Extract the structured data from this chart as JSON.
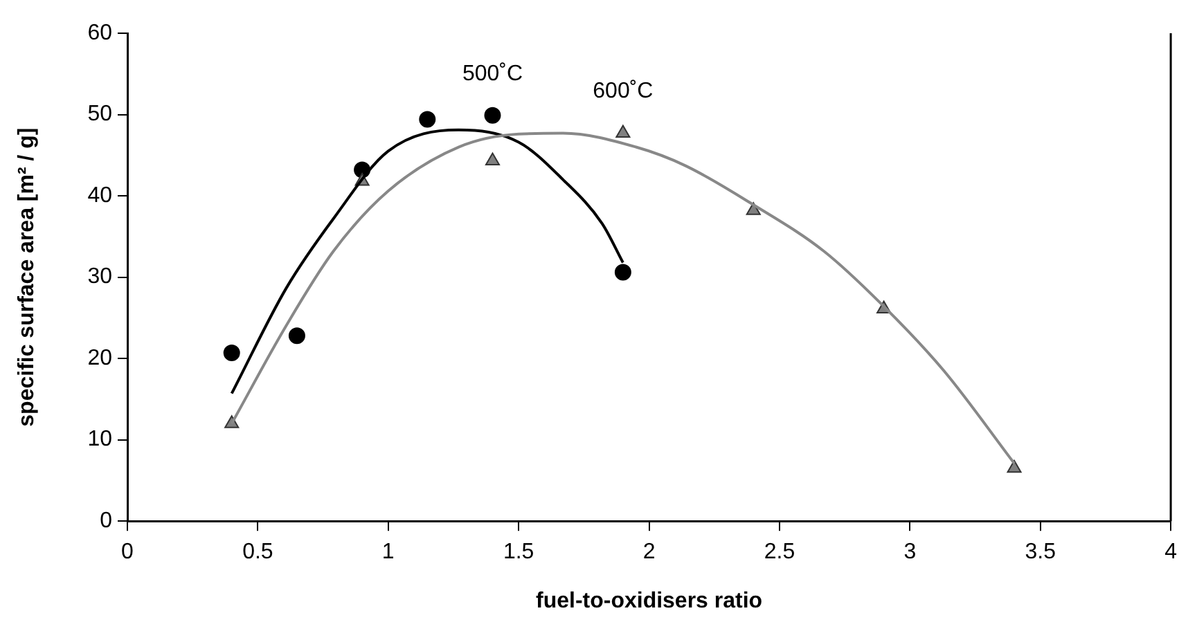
{
  "chart_data": {
    "type": "scatter",
    "xlabel": "fuel-to-oxidisers ratio",
    "ylabel": "specific surface area [m² / g]",
    "xlim": [
      0,
      4
    ],
    "xticks": [
      0,
      0.5,
      1,
      1.5,
      2,
      2.5,
      3,
      3.5,
      4
    ],
    "ylim": [
      0,
      60
    ],
    "yticks": [
      0,
      10,
      20,
      30,
      40,
      50,
      60
    ],
    "grid": false,
    "legend": false,
    "series": [
      {
        "name": "500˚C",
        "marker": "circle",
        "color": "#000000",
        "x": [
          0.4,
          0.65,
          0.9,
          1.15,
          1.4,
          1.9
        ],
        "values": [
          20.7,
          22.8,
          43.2,
          49.4,
          49.9,
          30.6
        ]
      },
      {
        "name": "600˚C",
        "marker": "triangle",
        "color": "#808080",
        "x": [
          0.4,
          0.9,
          1.4,
          1.9,
          2.4,
          2.9,
          3.4
        ],
        "values": [
          12.0,
          41.8,
          44.3,
          47.7,
          38.2,
          26.1,
          6.5
        ]
      },
      {
        "type": "line",
        "marker": "none",
        "color": "#000000",
        "x": [
          0.4,
          0.61,
          0.79,
          1.0,
          1.27,
          1.5,
          1.67,
          1.82,
          1.9
        ],
        "values": [
          15.7,
          28.7,
          37.2,
          45.5,
          48.1,
          46.6,
          42.0,
          36.6,
          31.8
        ]
      },
      {
        "type": "line",
        "marker": "none",
        "color": "#888888",
        "x": [
          0.4,
          0.61,
          0.79,
          1.0,
          1.27,
          1.5,
          1.67,
          1.95,
          2.14,
          2.4,
          2.67,
          2.9,
          3.13,
          3.4
        ],
        "values": [
          12.0,
          24.1,
          33.2,
          40.6,
          46.0,
          47.6,
          47.7,
          46.0,
          43.7,
          38.9,
          33.2,
          26.4,
          18.5,
          7.1
        ]
      }
    ]
  }
}
